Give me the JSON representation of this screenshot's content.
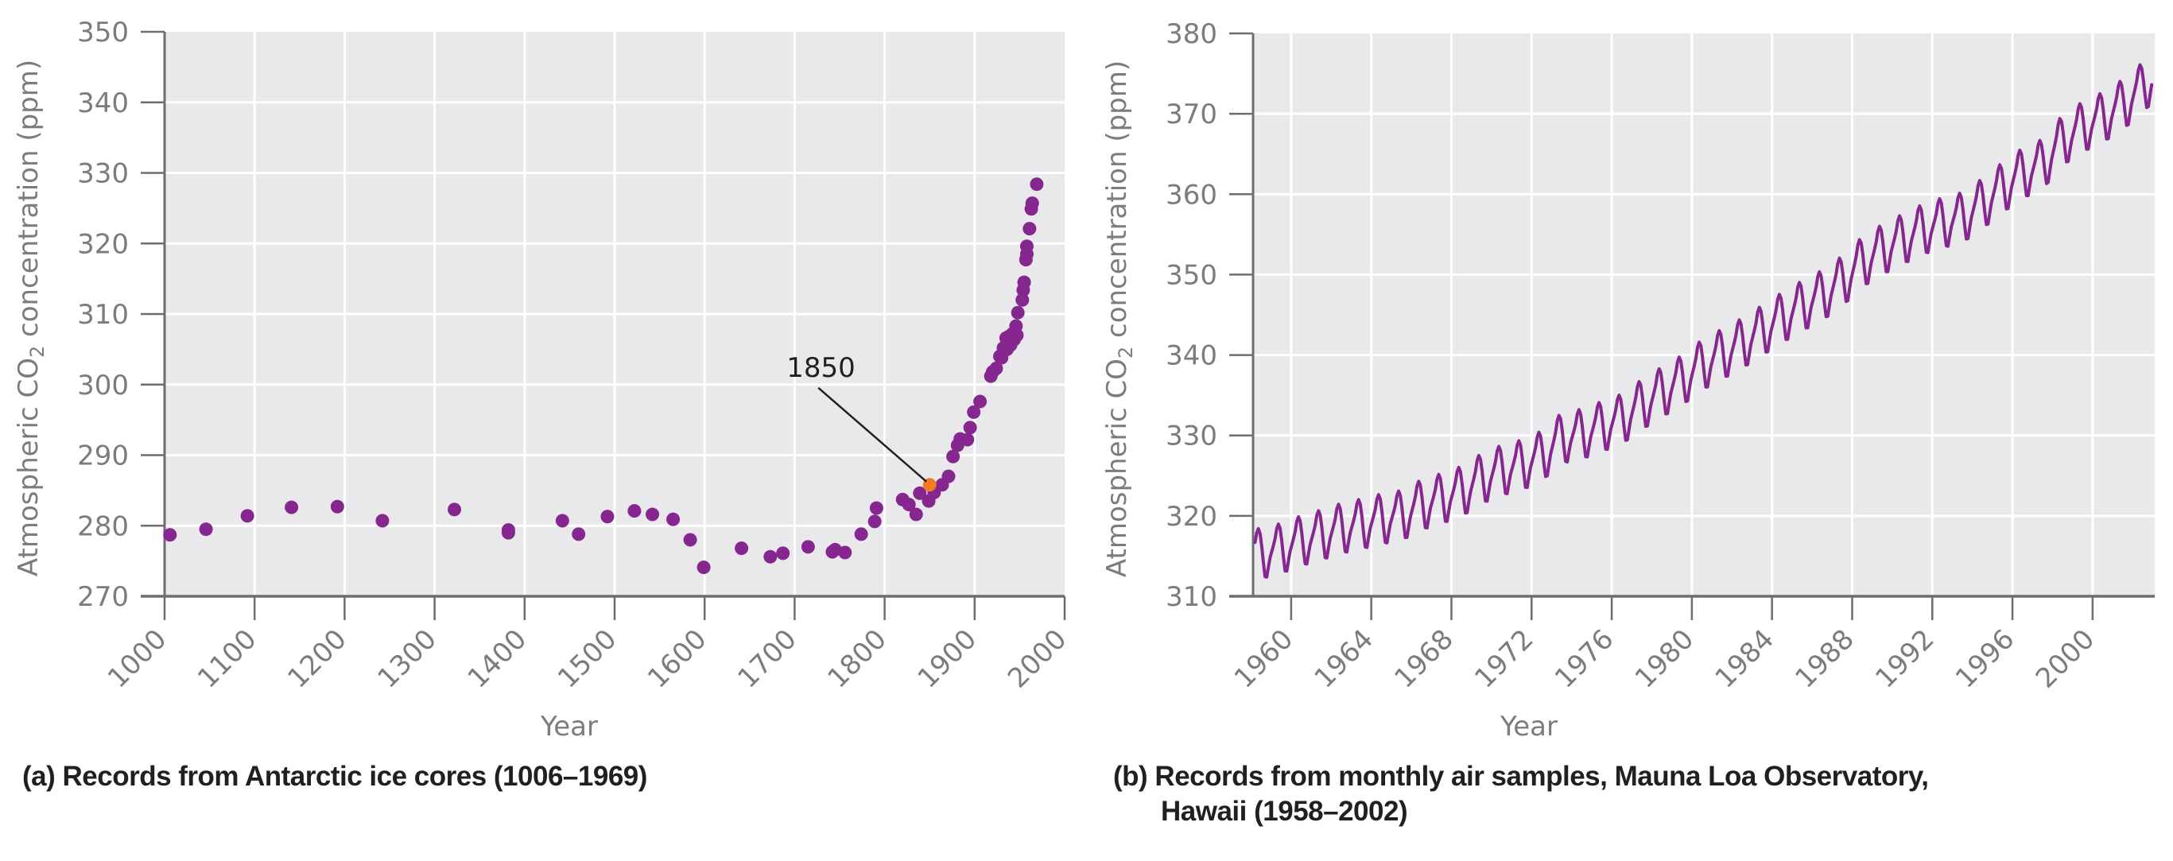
{
  "colors": {
    "plot_bg": "#e9e9ec",
    "grid": "#ffffff",
    "axis": "#6d6e71",
    "series": "#86268f",
    "highlight": "#f47b20",
    "text": "#7b7c7f",
    "annotation": "#231f20"
  },
  "chart_data": [
    {
      "id": "a",
      "type": "scatter",
      "caption": "(a) Records from Antarctic ice cores (1006–1969)",
      "xlabel": "Year",
      "ylabel_prefix": "Atmospheric CO",
      "ylabel_sub": "2",
      "ylabel_suffix": " concentration (ppm)",
      "xlim": [
        1000,
        2000
      ],
      "ylim": [
        270,
        350
      ],
      "xticks": [
        1000,
        1100,
        1200,
        1300,
        1400,
        1500,
        1600,
        1700,
        1800,
        1900,
        2000
      ],
      "yticks": [
        270,
        280,
        290,
        300,
        310,
        320,
        330,
        340,
        350
      ],
      "grid": true,
      "annotation": {
        "text": "1850",
        "x": 1850,
        "y": 285.8
      },
      "points": [
        [
          1006,
          278.7
        ],
        [
          1046,
          279.5
        ],
        [
          1092,
          281.4
        ],
        [
          1141,
          282.6
        ],
        [
          1192,
          282.7
        ],
        [
          1242,
          280.7
        ],
        [
          1322,
          282.3
        ],
        [
          1382,
          279.4
        ],
        [
          1382,
          279.0
        ],
        [
          1442,
          280.7
        ],
        [
          1460,
          278.8
        ],
        [
          1492,
          281.3
        ],
        [
          1522,
          282.1
        ],
        [
          1542,
          281.6
        ],
        [
          1565,
          280.9
        ],
        [
          1584,
          278.0
        ],
        [
          1599,
          274.1
        ],
        [
          1641,
          276.8
        ],
        [
          1673,
          275.6
        ],
        [
          1687,
          276.1
        ],
        [
          1715,
          277.0
        ],
        [
          1742,
          276.3
        ],
        [
          1745,
          276.6
        ],
        [
          1756,
          276.2
        ],
        [
          1774,
          278.8
        ],
        [
          1789,
          280.6
        ],
        [
          1791,
          282.5
        ],
        [
          1820,
          283.7
        ],
        [
          1827,
          283.0
        ],
        [
          1835,
          281.6
        ],
        [
          1839,
          284.6
        ],
        [
          1849,
          283.5
        ],
        [
          1855,
          284.7
        ],
        [
          1864,
          285.8
        ],
        [
          1871,
          287.0
        ],
        [
          1876,
          289.8
        ],
        [
          1881,
          291.4
        ],
        [
          1884,
          292.3
        ],
        [
          1892,
          292.2
        ],
        [
          1895,
          293.9
        ],
        [
          1899,
          296.1
        ],
        [
          1906,
          297.6
        ],
        [
          1918,
          301.2
        ],
        [
          1920,
          301.8
        ],
        [
          1924,
          302.3
        ],
        [
          1928,
          304.0
        ],
        [
          1930,
          303.8
        ],
        [
          1932,
          305.2
        ],
        [
          1935,
          306.6
        ],
        [
          1936,
          305.0
        ],
        [
          1938,
          306.8
        ],
        [
          1940,
          305.6
        ],
        [
          1942,
          307.2
        ],
        [
          1944,
          306.4
        ],
        [
          1946,
          308.3
        ],
        [
          1947,
          307.0
        ],
        [
          1948,
          310.2
        ],
        [
          1953,
          312.0
        ],
        [
          1954,
          313.4
        ],
        [
          1955,
          314.5
        ],
        [
          1957,
          317.7
        ],
        [
          1958,
          318.5
        ],
        [
          1958,
          319.6
        ],
        [
          1961,
          322.1
        ],
        [
          1963,
          324.9
        ],
        [
          1964,
          325.7
        ],
        [
          1969,
          328.4
        ]
      ],
      "highlight_point": [
        1850,
        285.8
      ]
    },
    {
      "id": "b",
      "type": "line",
      "caption_line1": "(b) Records from monthly air samples, Mauna Loa Observatory,",
      "caption_line2": "Hawaii (1958–2002)",
      "xlabel": "Year",
      "ylabel_prefix": "Atmospheric CO",
      "ylabel_sub": "2",
      "ylabel_suffix": " concentration (ppm)",
      "xlim": [
        1958.1,
        2003.1
      ],
      "ylim": [
        310,
        380
      ],
      "xticks": [
        1960,
        1964,
        1968,
        1972,
        1976,
        1980,
        1984,
        1988,
        1992,
        1996,
        2000
      ],
      "yticks": [
        310,
        320,
        330,
        340,
        350,
        360,
        370,
        380
      ],
      "grid": true,
      "series_start": 1958.2,
      "series_end": 2003.0,
      "annual_means": {
        "1958": 315.3,
        "1959": 315.97,
        "1960": 316.91,
        "1961": 317.64,
        "1962": 318.45,
        "1963": 318.99,
        "1964": 319.62,
        "1965": 320.04,
        "1966": 321.38,
        "1967": 322.16,
        "1968": 323.04,
        "1969": 324.62,
        "1970": 325.68,
        "1971": 326.32,
        "1972": 327.45,
        "1973": 329.68,
        "1974": 330.18,
        "1975": 331.11,
        "1976": 332.04,
        "1977": 333.83,
        "1978": 335.4,
        "1979": 336.84,
        "1980": 338.75,
        "1981": 340.11,
        "1982": 341.45,
        "1983": 343.05,
        "1984": 344.65,
        "1985": 346.12,
        "1986": 347.42,
        "1987": 349.19,
        "1988": 351.57,
        "1989": 353.12,
        "1990": 354.39,
        "1991": 355.61,
        "1992": 356.45,
        "1993": 357.1,
        "1994": 358.83,
        "1995": 360.82,
        "1996": 362.61,
        "1997": 363.73,
        "1998": 366.7,
        "1999": 368.38,
        "2000": 369.55,
        "2001": 371.14,
        "2002": 373.28,
        "2003": 375.8
      },
      "monthly_seasonal_anomaly": [
        -0.1,
        0.6,
        1.4,
        2.6,
        3.1,
        2.5,
        0.9,
        -1.2,
        -3.0,
        -3.1,
        -1.9,
        -0.8
      ]
    }
  ]
}
